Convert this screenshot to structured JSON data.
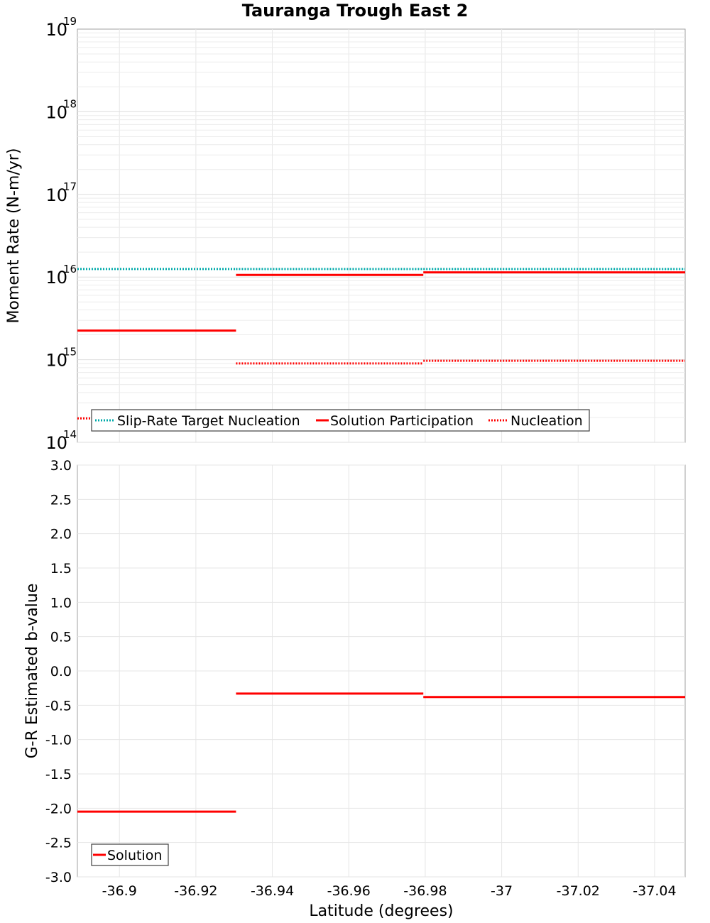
{
  "chart_data": {
    "title": "Tauranga Trough East 2",
    "xlabel": "Latitude (degrees)",
    "xlim": [
      -36.889,
      -37.048
    ],
    "x_ticks": [
      -36.9,
      -36.92,
      -36.94,
      -36.96,
      -36.98,
      -37.0,
      -37.02,
      -37.04
    ],
    "x_tick_labels": [
      "-36.9",
      "-36.92",
      "-36.94",
      "-36.96",
      "-36.98",
      "-37",
      "-37.02",
      "-37.04"
    ],
    "panels": [
      {
        "id": "moment-rate",
        "type": "line",
        "ylabel": "Moment Rate (N-m/yr)",
        "yscale": "log",
        "ylim": [
          100000000000000.0,
          1e+19
        ],
        "y_ticks": [
          {
            "base": "10",
            "exp": "14",
            "value": 100000000000000.0
          },
          {
            "base": "10",
            "exp": "15",
            "value": 1000000000000000.0
          },
          {
            "base": "10",
            "exp": "16",
            "value": 1e+16
          },
          {
            "base": "10",
            "exp": "17",
            "value": 1e+17
          },
          {
            "base": "10",
            "exp": "18",
            "value": 1e+18
          },
          {
            "base": "10",
            "exp": "19",
            "value": 1e+19
          }
        ],
        "series": [
          {
            "name": "Slip-Rate Target Nucleation",
            "color": "#00aaaa",
            "style": "dotted",
            "segments": [
              {
                "x0": -36.889,
                "x1": -36.9305,
                "y": 1.25e+16
              },
              {
                "x0": -36.9305,
                "x1": -36.9795,
                "y": 1.25e+16
              },
              {
                "x0": -36.9795,
                "x1": -37.048,
                "y": 1.25e+16
              }
            ]
          },
          {
            "name": "Solution Participation",
            "color": "#ff0000",
            "style": "solid",
            "segments": [
              {
                "x0": -36.889,
                "x1": -36.9305,
                "y": 2250000000000000.0
              },
              {
                "x0": -36.9305,
                "x1": -36.9795,
                "y": 1.06e+16
              },
              {
                "x0": -36.9795,
                "x1": -37.048,
                "y": 1.14e+16
              }
            ]
          },
          {
            "name": "Nucleation",
            "color": "#ff0000",
            "style": "dotted",
            "segments": [
              {
                "x0": -36.889,
                "x1": -36.9305,
                "y": 195000000000000.0
              },
              {
                "x0": -36.9305,
                "x1": -36.9795,
                "y": 900000000000000.0
              },
              {
                "x0": -36.9795,
                "x1": -37.048,
                "y": 970000000000000.0
              }
            ]
          }
        ],
        "legend": {
          "position": "bottom-left",
          "entries": [
            "Slip-Rate Target Nucleation",
            "Solution Participation",
            "Nucleation"
          ]
        }
      },
      {
        "id": "b-value",
        "type": "line",
        "ylabel": "G-R Estimated b-value",
        "yscale": "linear",
        "ylim": [
          -3.0,
          3.0
        ],
        "y_ticks": [
          3.0,
          2.5,
          2.0,
          1.5,
          1.0,
          0.5,
          0.0,
          -0.5,
          -1.0,
          -1.5,
          -2.0,
          -2.5,
          -3.0
        ],
        "y_tick_labels": [
          "3.0",
          "2.5",
          "2.0",
          "1.5",
          "1.0",
          "0.5",
          "0.0",
          "-0.5",
          "-1.0",
          "-1.5",
          "-2.0",
          "-2.5",
          "-3.0"
        ],
        "series": [
          {
            "name": "Solution",
            "color": "#ff0000",
            "style": "solid",
            "segments": [
              {
                "x0": -36.889,
                "x1": -36.9305,
                "y": -2.05
              },
              {
                "x0": -36.9305,
                "x1": -36.9795,
                "y": -0.33
              },
              {
                "x0": -36.9795,
                "x1": -37.048,
                "y": -0.38
              }
            ]
          }
        ],
        "legend": {
          "position": "bottom-left",
          "entries": [
            "Solution"
          ]
        }
      }
    ]
  }
}
